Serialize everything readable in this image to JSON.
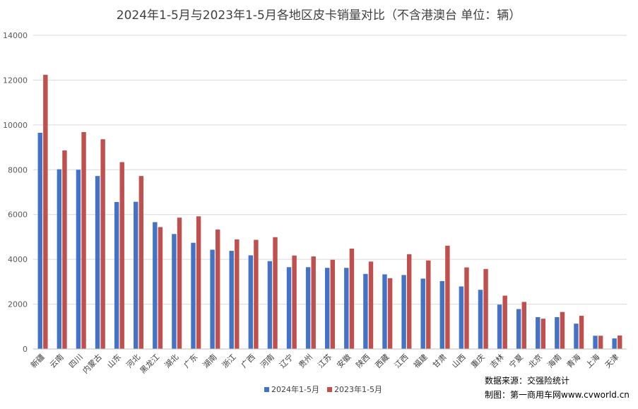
{
  "chart_data": {
    "type": "bar",
    "title": "2024年1-5月与2023年1-5月各地区皮卡销量对比（不含港澳台 单位：辆）",
    "xlabel": "",
    "ylabel": "",
    "ylim": [
      0,
      14000
    ],
    "yticks": [
      0,
      2000,
      4000,
      6000,
      8000,
      10000,
      12000,
      14000
    ],
    "grid": true,
    "legend_position": "bottom",
    "categories": [
      "新疆",
      "云南",
      "四川",
      "内蒙古",
      "山东",
      "河北",
      "黑龙江",
      "湖北",
      "广东",
      "湖南",
      "浙江",
      "广西",
      "河南",
      "辽宁",
      "贵州",
      "江苏",
      "安徽",
      "陕西",
      "西藏",
      "江西",
      "福建",
      "甘肃",
      "山西",
      "重庆",
      "吉林",
      "宁夏",
      "北京",
      "海南",
      "青海",
      "上海",
      "天津"
    ],
    "series": [
      {
        "name": "2024年1-5月",
        "color": "#4472c4",
        "values": [
          9650,
          8020,
          8000,
          7720,
          6560,
          6570,
          5660,
          5130,
          4740,
          4430,
          4380,
          4180,
          3920,
          3650,
          3650,
          3620,
          3620,
          3350,
          3330,
          3300,
          3140,
          3030,
          2790,
          2640,
          1980,
          1780,
          1420,
          1420,
          1130,
          590,
          470
        ]
      },
      {
        "name": "2023年1-5月",
        "color": "#c0504d",
        "values": [
          12240,
          8860,
          9680,
          9360,
          8340,
          7720,
          5440,
          5860,
          5920,
          5330,
          4890,
          4870,
          4990,
          4170,
          4130,
          3980,
          4480,
          3900,
          3160,
          4230,
          3950,
          4610,
          3640,
          3570,
          2380,
          2100,
          1350,
          1650,
          1480,
          590,
          600
        ]
      }
    ]
  },
  "notes": {
    "source": "数据来源：交强险统计",
    "maker": "制图：第一商用车网www.cvworld.cn"
  }
}
